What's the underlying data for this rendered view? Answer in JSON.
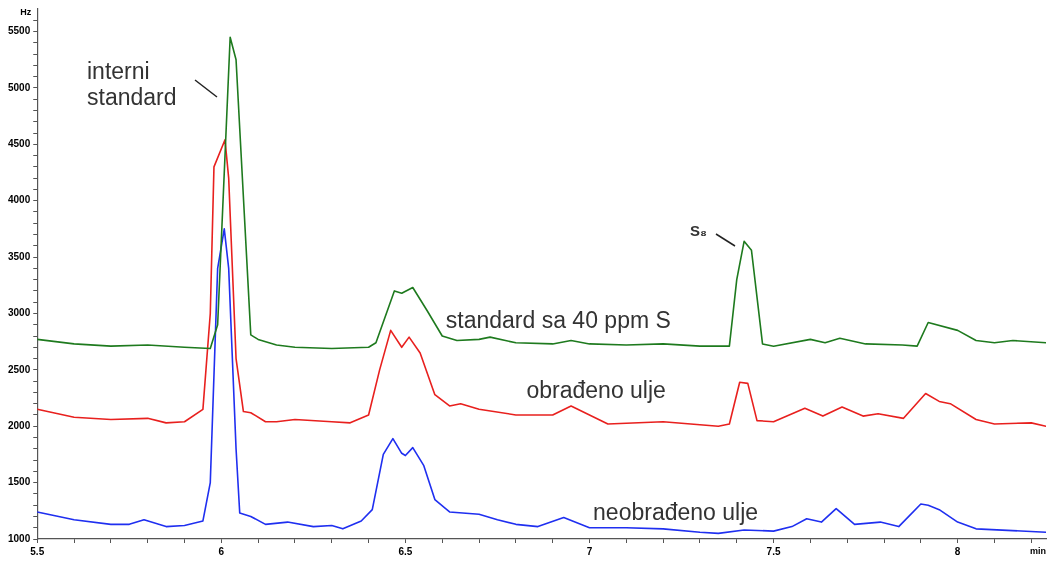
{
  "chart_data": {
    "type": "line",
    "xlabel": "min",
    "ylabel": "Hz",
    "xlim": [
      5.5,
      8.24
    ],
    "ylim": [
      1000,
      5700
    ],
    "xticks": [
      5.5,
      {
        "value": 5.6,
        "label": null
      },
      {
        "value": 5.7,
        "label": null
      },
      {
        "value": 5.8,
        "label": null
      },
      {
        "value": 5.9,
        "label": null
      },
      6,
      {
        "value": 6.1,
        "label": null
      },
      {
        "value": 6.2,
        "label": null
      },
      {
        "value": 6.3,
        "label": null
      },
      {
        "value": 6.4,
        "label": null
      },
      6.5,
      {
        "value": 6.6,
        "label": null
      },
      {
        "value": 6.7,
        "label": null
      },
      {
        "value": 6.8,
        "label": null
      },
      {
        "value": 6.9,
        "label": null
      },
      7,
      {
        "value": 7.1,
        "label": null
      },
      {
        "value": 7.2,
        "label": null
      },
      {
        "value": 7.3,
        "label": null
      },
      {
        "value": 7.4,
        "label": null
      },
      7.5,
      {
        "value": 7.6,
        "label": null
      },
      {
        "value": 7.7,
        "label": null
      },
      {
        "value": 7.8,
        "label": null
      },
      {
        "value": 7.9,
        "label": null
      },
      8,
      {
        "value": 8.1,
        "label": null
      },
      {
        "value": 8.2,
        "label": null
      }
    ],
    "yticks": [
      1000,
      {
        "value": 1100,
        "label": null
      },
      {
        "value": 1200,
        "label": null
      },
      {
        "value": 1300,
        "label": null
      },
      {
        "value": 1400,
        "label": null
      },
      1500,
      {
        "value": 1600,
        "label": null
      },
      {
        "value": 1700,
        "label": null
      },
      {
        "value": 1800,
        "label": null
      },
      {
        "value": 1900,
        "label": null
      },
      2000,
      {
        "value": 2100,
        "label": null
      },
      {
        "value": 2200,
        "label": null
      },
      {
        "value": 2300,
        "label": null
      },
      {
        "value": 2400,
        "label": null
      },
      2500,
      {
        "value": 2600,
        "label": null
      },
      {
        "value": 2700,
        "label": null
      },
      {
        "value": 2800,
        "label": null
      },
      {
        "value": 2900,
        "label": null
      },
      3000,
      {
        "value": 3100,
        "label": null
      },
      {
        "value": 3200,
        "label": null
      },
      {
        "value": 3300,
        "label": null
      },
      {
        "value": 3400,
        "label": null
      },
      3500,
      {
        "value": 3600,
        "label": null
      },
      {
        "value": 3700,
        "label": null
      },
      {
        "value": 3800,
        "label": null
      },
      {
        "value": 3900,
        "label": null
      },
      4000,
      {
        "value": 4100,
        "label": null
      },
      {
        "value": 4200,
        "label": null
      },
      {
        "value": 4300,
        "label": null
      },
      {
        "value": 4400,
        "label": null
      },
      4500,
      {
        "value": 4600,
        "label": null
      },
      {
        "value": 4700,
        "label": null
      },
      {
        "value": 4800,
        "label": null
      },
      {
        "value": 4900,
        "label": null
      },
      5000,
      {
        "value": 5100,
        "label": null
      },
      {
        "value": 5200,
        "label": null
      },
      {
        "value": 5300,
        "label": null
      },
      {
        "value": 5400,
        "label": null
      },
      5500,
      {
        "value": 5600,
        "label": null
      }
    ],
    "grid": false,
    "legend": false,
    "marker": "none",
    "line_style": "solid",
    "annotations": [
      "interni standard",
      "S₈"
    ],
    "series": [
      {
        "name": "standard sa 40 ppm S",
        "color": "#1e7a1e",
        "x": [
          5.5,
          5.6,
          5.7,
          5.8,
          5.9,
          5.97,
          5.99,
          6.024,
          6.04,
          6.08,
          6.1,
          6.15,
          6.2,
          6.3,
          6.4,
          6.42,
          6.47,
          6.49,
          6.52,
          6.56,
          6.6,
          6.64,
          6.7,
          6.73,
          6.8,
          6.9,
          6.95,
          7.0,
          7.1,
          7.2,
          7.3,
          7.38,
          7.4,
          7.42,
          7.44,
          7.47,
          7.5,
          7.6,
          7.64,
          7.68,
          7.75,
          7.85,
          7.89,
          7.92,
          8.0,
          8.05,
          8.1,
          8.15,
          8.24
        ],
        "values": [
          2770,
          2730,
          2710,
          2720,
          2700,
          2690,
          2900,
          5450,
          5250,
          2810,
          2770,
          2720,
          2700,
          2690,
          2700,
          2740,
          3200,
          3180,
          3230,
          3020,
          2800,
          2760,
          2770,
          2790,
          2740,
          2730,
          2760,
          2730,
          2720,
          2730,
          2710,
          2710,
          3300,
          3640,
          3560,
          2730,
          2710,
          2770,
          2740,
          2780,
          2730,
          2720,
          2710,
          2920,
          2850,
          2760,
          2740,
          2760,
          2740
        ]
      },
      {
        "name": "obrađeno ulje",
        "color": "#e8201e",
        "x": [
          5.5,
          5.6,
          5.7,
          5.8,
          5.85,
          5.9,
          5.95,
          5.97,
          5.98,
          6.01,
          6.02,
          6.04,
          6.06,
          6.08,
          6.12,
          6.15,
          6.2,
          6.3,
          6.35,
          6.4,
          6.43,
          6.46,
          6.49,
          6.51,
          6.54,
          6.58,
          6.62,
          6.65,
          6.7,
          6.8,
          6.9,
          6.95,
          7.0,
          7.05,
          7.2,
          7.35,
          7.38,
          7.408,
          7.43,
          7.455,
          7.5,
          7.585,
          7.634,
          7.686,
          7.743,
          7.784,
          7.853,
          7.913,
          7.95,
          7.98,
          8.05,
          8.1,
          8.2,
          8.24
        ],
        "values": [
          2150,
          2080,
          2060,
          2070,
          2030,
          2040,
          2150,
          3000,
          4300,
          4540,
          4200,
          2600,
          2130,
          2120,
          2040,
          2040,
          2060,
          2040,
          2030,
          2100,
          2500,
          2850,
          2700,
          2790,
          2650,
          2280,
          2180,
          2200,
          2150,
          2100,
          2100,
          2180,
          2100,
          2020,
          2040,
          2000,
          2020,
          2390,
          2380,
          2050,
          2040,
          2160,
          2090,
          2170,
          2090,
          2110,
          2070,
          2290,
          2220,
          2200,
          2060,
          2020,
          2030,
          2000
        ]
      },
      {
        "name": "neobrađeno ulje",
        "color": "#1f2ff0",
        "x": [
          5.5,
          5.6,
          5.7,
          5.75,
          5.79,
          5.85,
          5.9,
          5.95,
          5.97,
          5.99,
          6.008,
          6.02,
          6.04,
          6.05,
          6.08,
          6.12,
          6.18,
          6.25,
          6.3,
          6.33,
          6.38,
          6.41,
          6.44,
          6.466,
          6.49,
          6.5,
          6.52,
          6.55,
          6.58,
          6.62,
          6.7,
          6.75,
          6.8,
          6.86,
          6.93,
          7.0,
          7.1,
          7.2,
          7.3,
          7.35,
          7.42,
          7.5,
          7.55,
          7.59,
          7.63,
          7.67,
          7.72,
          7.79,
          7.84,
          7.9,
          7.92,
          7.95,
          8.0,
          8.05,
          8.24
        ],
        "values": [
          1240,
          1170,
          1130,
          1130,
          1170,
          1110,
          1120,
          1160,
          1500,
          3400,
          3750,
          3400,
          1800,
          1230,
          1200,
          1130,
          1150,
          1110,
          1120,
          1090,
          1160,
          1260,
          1750,
          1890,
          1760,
          1740,
          1810,
          1650,
          1350,
          1240,
          1220,
          1170,
          1130,
          1110,
          1190,
          1100,
          1100,
          1090,
          1060,
          1050,
          1080,
          1070,
          1110,
          1180,
          1150,
          1270,
          1130,
          1150,
          1110,
          1310,
          1300,
          1260,
          1150,
          1090,
          1060
        ]
      }
    ]
  }
}
